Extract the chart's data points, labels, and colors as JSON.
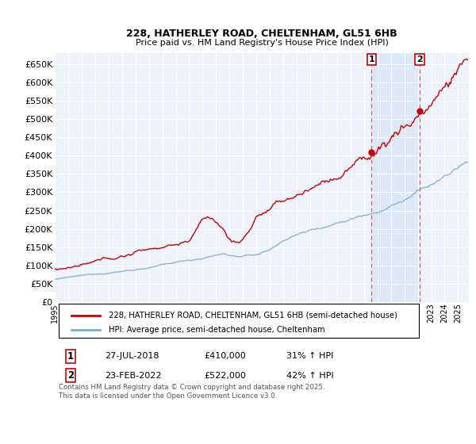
{
  "title": "228, HATHERLEY ROAD, CHELTENHAM, GL51 6HB",
  "subtitle": "Price paid vs. HM Land Registry's House Price Index (HPI)",
  "legend_label_red": "228, HATHERLEY ROAD, CHELTENHAM, GL51 6HB (semi-detached house)",
  "legend_label_blue": "HPI: Average price, semi-detached house, Cheltenham",
  "annotation1_label": "1",
  "annotation1_date": "27-JUL-2018",
  "annotation1_price": "£410,000",
  "annotation1_hpi": "31% ↑ HPI",
  "annotation2_label": "2",
  "annotation2_date": "23-FEB-2022",
  "annotation2_price": "£522,000",
  "annotation2_hpi": "42% ↑ HPI",
  "footer": "Contains HM Land Registry data © Crown copyright and database right 2025.\nThis data is licensed under the Open Government Licence v3.0.",
  "ylim": [
    0,
    680000
  ],
  "xlim_start": 1995,
  "xlim_end": 2025.8,
  "yticks": [
    0,
    50000,
    100000,
    150000,
    200000,
    250000,
    300000,
    350000,
    400000,
    450000,
    500000,
    550000,
    600000,
    650000
  ],
  "background_plot": "#eef3fb",
  "background_shade": "#dce8f8",
  "grid_color": "#ffffff",
  "line_color_red": "#cc0000",
  "line_color_blue": "#7aafd4",
  "dashed_line_color": "#e06060",
  "point1_x_year": 2018.57,
  "point1_y": 410000,
  "point2_x_year": 2022.13,
  "point2_y": 522000,
  "vline1_x": 2018.57,
  "vline2_x": 2022.13,
  "shade_start": 2018.57,
  "shade_end": 2022.13,
  "title_fontsize": 9,
  "subtitle_fontsize": 8,
  "ytick_fontsize": 8,
  "xtick_fontsize": 7
}
